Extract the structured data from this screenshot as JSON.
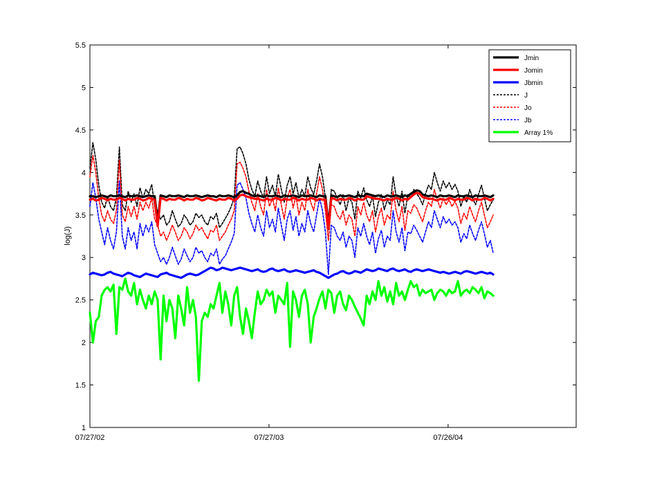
{
  "chart_data": {
    "type": "line",
    "title": "",
    "xlabel": "",
    "ylabel": "log(J)",
    "ylim": [
      1,
      5.5
    ],
    "yticks": [
      "1",
      "1.5",
      "2",
      "2.5",
      "3",
      "3.5",
      "4",
      "4.5",
      "5",
      "5.5"
    ],
    "xticks": [
      "07/27/02",
      "07/27/03",
      "07/26/04"
    ],
    "x_start": "07/27/02",
    "x_end": "04/13/05",
    "x_step": "6 days",
    "grid": false,
    "legend_position": "top-right",
    "series": [
      {
        "name": "Jmin",
        "color": "#000000",
        "style": "solid-thick",
        "values": [
          3.72,
          3.72,
          3.71,
          3.72,
          3.73,
          3.72,
          3.71,
          3.73,
          3.72,
          3.72,
          3.73,
          3.72,
          3.71,
          3.73,
          3.72,
          3.72,
          3.73,
          3.72,
          3.71,
          3.72,
          3.73,
          3.72,
          3.72,
          3.42,
          3.73,
          3.72,
          3.71,
          3.73,
          3.72,
          3.72,
          3.73,
          3.72,
          3.71,
          3.73,
          3.72,
          3.72,
          3.73,
          3.72,
          3.71,
          3.72,
          3.73,
          3.72,
          3.72,
          3.71,
          3.73,
          3.72,
          3.72,
          3.73,
          3.72,
          3.71,
          3.73,
          3.77,
          3.78,
          3.76,
          3.75,
          3.73,
          3.72,
          3.73,
          3.72,
          3.71,
          3.73,
          3.72,
          3.72,
          3.73,
          3.72,
          3.71,
          3.73,
          3.72,
          3.72,
          3.73,
          3.72,
          3.71,
          3.73,
          3.72,
          3.72,
          3.73,
          3.72,
          3.71,
          3.73,
          3.72,
          3.72,
          3.38,
          3.73,
          3.72,
          3.71,
          3.73,
          3.72,
          3.72,
          3.73,
          3.72,
          3.71,
          3.73,
          3.72,
          3.72,
          3.75,
          3.74,
          3.73,
          3.72,
          3.73,
          3.72,
          3.71,
          3.73,
          3.72,
          3.72,
          3.73,
          3.72,
          3.71,
          3.73,
          3.72,
          3.75,
          3.77,
          3.79,
          3.78,
          3.74,
          3.73,
          3.72,
          3.73,
          3.72,
          3.71,
          3.73,
          3.72,
          3.72,
          3.73,
          3.72,
          3.71,
          3.73,
          3.72,
          3.72,
          3.73,
          3.72,
          3.71,
          3.73,
          3.72,
          3.72,
          3.73,
          3.72,
          3.71,
          3.73
        ]
      },
      {
        "name": "Jomin",
        "color": "#ff0000",
        "style": "solid-thick",
        "values": [
          3.68,
          3.69,
          3.67,
          3.68,
          3.7,
          3.69,
          3.67,
          3.69,
          3.68,
          3.68,
          3.7,
          3.69,
          3.67,
          3.69,
          3.68,
          3.68,
          3.7,
          3.69,
          3.67,
          3.68,
          3.7,
          3.69,
          3.68,
          3.37,
          3.7,
          3.69,
          3.67,
          3.69,
          3.68,
          3.68,
          3.7,
          3.69,
          3.67,
          3.69,
          3.68,
          3.68,
          3.7,
          3.69,
          3.67,
          3.68,
          3.7,
          3.69,
          3.68,
          3.67,
          3.69,
          3.68,
          3.68,
          3.7,
          3.69,
          3.67,
          3.69,
          3.73,
          3.74,
          3.72,
          3.71,
          3.7,
          3.69,
          3.69,
          3.68,
          3.67,
          3.69,
          3.68,
          3.68,
          3.7,
          3.69,
          3.67,
          3.69,
          3.68,
          3.68,
          3.7,
          3.69,
          3.67,
          3.69,
          3.68,
          3.68,
          3.7,
          3.69,
          3.67,
          3.69,
          3.68,
          3.68,
          3.34,
          3.7,
          3.69,
          3.67,
          3.69,
          3.68,
          3.68,
          3.7,
          3.69,
          3.67,
          3.69,
          3.68,
          3.68,
          3.72,
          3.71,
          3.7,
          3.69,
          3.69,
          3.68,
          3.67,
          3.69,
          3.68,
          3.68,
          3.7,
          3.69,
          3.67,
          3.69,
          3.68,
          3.71,
          3.74,
          3.76,
          3.75,
          3.71,
          3.7,
          3.69,
          3.69,
          3.68,
          3.67,
          3.69,
          3.68,
          3.68,
          3.7,
          3.69,
          3.67,
          3.69,
          3.68,
          3.68,
          3.7,
          3.69,
          3.67,
          3.69,
          3.68,
          3.68,
          3.7,
          3.69,
          3.67,
          3.69
        ]
      },
      {
        "name": "Jbmin",
        "color": "#0000ff",
        "style": "solid-thick",
        "values": [
          2.8,
          2.82,
          2.81,
          2.8,
          2.79,
          2.8,
          2.82,
          2.83,
          2.81,
          2.8,
          2.79,
          2.78,
          2.8,
          2.82,
          2.81,
          2.79,
          2.78,
          2.77,
          2.79,
          2.81,
          2.8,
          2.79,
          2.78,
          2.77,
          2.8,
          2.81,
          2.82,
          2.8,
          2.79,
          2.78,
          2.77,
          2.76,
          2.78,
          2.8,
          2.81,
          2.8,
          2.79,
          2.8,
          2.82,
          2.84,
          2.86,
          2.88,
          2.87,
          2.85,
          2.86,
          2.88,
          2.87,
          2.86,
          2.85,
          2.86,
          2.87,
          2.88,
          2.87,
          2.86,
          2.85,
          2.84,
          2.85,
          2.86,
          2.84,
          2.83,
          2.84,
          2.86,
          2.87,
          2.85,
          2.84,
          2.85,
          2.86,
          2.84,
          2.83,
          2.84,
          2.85,
          2.84,
          2.83,
          2.82,
          2.83,
          2.84,
          2.85,
          2.83,
          2.82,
          2.8,
          2.78,
          2.76,
          2.78,
          2.8,
          2.81,
          2.83,
          2.84,
          2.82,
          2.81,
          2.82,
          2.84,
          2.83,
          2.82,
          2.84,
          2.86,
          2.85,
          2.84,
          2.85,
          2.87,
          2.86,
          2.85,
          2.84,
          2.86,
          2.87,
          2.85,
          2.84,
          2.85,
          2.86,
          2.84,
          2.83,
          2.85,
          2.86,
          2.85,
          2.84,
          2.85,
          2.86,
          2.85,
          2.84,
          2.83,
          2.82,
          2.83,
          2.82,
          2.81,
          2.82,
          2.83,
          2.82,
          2.81,
          2.83,
          2.84,
          2.83,
          2.82,
          2.81,
          2.82,
          2.83,
          2.82,
          2.81,
          2.82,
          2.8
        ]
      },
      {
        "name": "J",
        "color": "#000000",
        "style": "dashed",
        "values": [
          4.05,
          4.35,
          4.15,
          3.85,
          3.65,
          3.58,
          3.72,
          3.6,
          3.55,
          3.7,
          4.3,
          3.62,
          3.55,
          3.78,
          3.65,
          3.75,
          3.6,
          3.82,
          3.7,
          3.8,
          3.75,
          3.86,
          3.6,
          3.55,
          3.45,
          3.5,
          3.38,
          3.42,
          3.55,
          3.45,
          3.36,
          3.4,
          3.5,
          3.45,
          3.38,
          3.42,
          3.52,
          3.47,
          3.5,
          3.42,
          3.38,
          3.48,
          3.45,
          3.52,
          3.35,
          3.4,
          3.46,
          3.52,
          3.6,
          3.7,
          4.28,
          4.3,
          4.22,
          4.1,
          3.92,
          3.8,
          3.72,
          3.9,
          3.78,
          3.7,
          3.95,
          3.75,
          3.85,
          3.72,
          3.98,
          3.8,
          3.65,
          3.85,
          3.95,
          3.75,
          3.88,
          3.7,
          3.8,
          3.72,
          3.95,
          3.82,
          3.74,
          3.9,
          4.1,
          3.95,
          3.7,
          3.32,
          3.8,
          3.78,
          3.7,
          3.62,
          3.74,
          3.55,
          3.7,
          3.65,
          3.45,
          3.78,
          3.7,
          3.82,
          3.68,
          3.6,
          3.72,
          3.48,
          3.65,
          3.74,
          3.56,
          3.68,
          3.62,
          3.95,
          3.72,
          3.6,
          3.78,
          3.52,
          3.74,
          3.7,
          3.8,
          3.75,
          3.7,
          3.62,
          3.75,
          3.85,
          3.8,
          4.0,
          3.88,
          3.78,
          3.9,
          3.82,
          3.88,
          3.8,
          3.86,
          3.78,
          3.6,
          3.72,
          3.65,
          3.8,
          3.7,
          3.62,
          3.74,
          3.85,
          3.7,
          3.55,
          3.62,
          3.68
        ]
      },
      {
        "name": "Jo",
        "color": "#ff0000",
        "style": "dashed",
        "values": [
          3.95,
          4.2,
          4.0,
          3.7,
          3.5,
          3.42,
          3.55,
          3.45,
          3.4,
          3.55,
          4.15,
          3.5,
          3.42,
          3.6,
          3.48,
          3.6,
          3.45,
          3.65,
          3.55,
          3.65,
          3.58,
          3.7,
          3.45,
          3.38,
          3.25,
          3.3,
          3.2,
          3.28,
          3.38,
          3.3,
          3.2,
          3.25,
          3.35,
          3.3,
          3.22,
          3.28,
          3.38,
          3.32,
          3.35,
          3.28,
          3.22,
          3.32,
          3.3,
          3.38,
          3.2,
          3.25,
          3.3,
          3.38,
          3.45,
          3.55,
          4.1,
          4.12,
          4.05,
          3.95,
          3.78,
          3.65,
          3.55,
          3.75,
          3.6,
          3.5,
          3.8,
          3.6,
          3.7,
          3.55,
          3.82,
          3.62,
          3.45,
          3.7,
          3.8,
          3.58,
          3.72,
          3.5,
          3.65,
          3.55,
          3.8,
          3.65,
          3.55,
          3.75,
          3.95,
          3.8,
          3.55,
          3.2,
          3.62,
          3.6,
          3.5,
          3.45,
          3.55,
          3.38,
          3.5,
          3.45,
          3.25,
          3.6,
          3.5,
          3.65,
          3.5,
          3.42,
          3.55,
          3.3,
          3.48,
          3.58,
          3.38,
          3.5,
          3.45,
          3.78,
          3.55,
          3.42,
          3.6,
          3.32,
          3.55,
          3.52,
          3.62,
          3.58,
          3.5,
          3.42,
          3.55,
          3.65,
          3.6,
          3.8,
          3.68,
          3.58,
          3.7,
          3.62,
          3.68,
          3.6,
          3.66,
          3.58,
          3.4,
          3.52,
          3.45,
          3.6,
          3.5,
          3.42,
          3.55,
          3.65,
          3.5,
          3.35,
          3.42,
          3.5
        ]
      },
      {
        "name": "Jb",
        "color": "#0000ff",
        "style": "dashed",
        "values": [
          3.6,
          3.88,
          3.7,
          3.45,
          3.3,
          3.15,
          3.35,
          3.2,
          3.1,
          3.3,
          3.9,
          3.25,
          3.1,
          3.35,
          3.2,
          3.3,
          3.1,
          3.4,
          3.25,
          3.38,
          3.3,
          3.42,
          3.15,
          3.05,
          2.95,
          3.0,
          2.92,
          3.0,
          3.12,
          3.02,
          2.92,
          2.98,
          3.1,
          3.02,
          2.95,
          3.0,
          3.12,
          3.05,
          3.08,
          3.0,
          2.95,
          3.05,
          3.02,
          3.1,
          2.92,
          2.98,
          3.02,
          3.1,
          3.18,
          3.28,
          3.85,
          3.88,
          3.8,
          3.7,
          3.52,
          3.4,
          3.3,
          3.5,
          3.35,
          3.25,
          3.55,
          3.35,
          3.45,
          3.3,
          3.58,
          3.38,
          3.2,
          3.45,
          3.55,
          3.32,
          3.48,
          3.25,
          3.4,
          3.3,
          3.55,
          3.4,
          3.3,
          3.5,
          3.7,
          3.55,
          3.3,
          2.8,
          3.38,
          3.35,
          3.25,
          3.2,
          3.3,
          3.12,
          3.25,
          3.2,
          3.0,
          3.35,
          3.25,
          3.4,
          3.25,
          3.15,
          3.3,
          3.05,
          3.22,
          3.32,
          3.12,
          3.25,
          3.2,
          3.55,
          3.3,
          3.18,
          3.35,
          3.08,
          3.3,
          3.28,
          3.38,
          3.32,
          3.25,
          3.18,
          3.3,
          3.42,
          3.35,
          3.55,
          3.45,
          3.35,
          3.48,
          3.4,
          3.45,
          3.38,
          3.42,
          3.35,
          3.18,
          3.28,
          3.22,
          3.38,
          3.28,
          3.2,
          3.32,
          3.42,
          3.28,
          3.12,
          3.2,
          3.05
        ]
      },
      {
        "name": "Array 1%",
        "color": "#00ff00",
        "style": "solid-thick",
        "values": [
          2.35,
          2.0,
          2.25,
          2.3,
          2.55,
          2.62,
          2.65,
          2.6,
          2.68,
          2.1,
          2.65,
          2.62,
          2.75,
          2.6,
          2.55,
          2.7,
          2.45,
          2.62,
          2.5,
          2.4,
          2.55,
          2.45,
          2.6,
          2.5,
          1.8,
          2.55,
          2.25,
          2.5,
          2.4,
          2.05,
          2.55,
          2.4,
          2.2,
          2.65,
          2.35,
          2.5,
          2.3,
          1.55,
          2.25,
          2.35,
          2.3,
          2.45,
          2.4,
          2.55,
          2.7,
          2.35,
          2.6,
          2.45,
          2.2,
          2.55,
          2.65,
          2.3,
          2.1,
          2.4,
          2.25,
          2.05,
          2.35,
          2.6,
          2.45,
          2.5,
          2.62,
          2.55,
          2.6,
          2.35,
          2.55,
          2.5,
          2.45,
          2.7,
          1.95,
          2.6,
          2.5,
          2.3,
          2.55,
          2.62,
          2.45,
          2.0,
          2.3,
          2.4,
          2.52,
          2.6,
          2.4,
          2.62,
          2.58,
          2.35,
          2.55,
          2.6,
          2.45,
          2.38,
          2.55,
          2.5,
          2.42,
          2.35,
          2.28,
          2.2,
          2.55,
          2.45,
          2.6,
          2.5,
          2.72,
          2.55,
          2.65,
          2.48,
          2.6,
          2.45,
          2.7,
          2.55,
          2.6,
          2.5,
          2.62,
          2.72,
          2.65,
          2.68,
          2.55,
          2.62,
          2.58,
          2.6,
          2.62,
          2.5,
          2.58,
          2.62,
          2.6,
          2.55,
          2.62,
          2.58,
          2.6,
          2.72,
          2.55,
          2.6,
          2.62,
          2.58,
          2.65,
          2.62,
          2.58,
          2.65,
          2.52,
          2.6,
          2.58,
          2.55
        ]
      }
    ]
  }
}
